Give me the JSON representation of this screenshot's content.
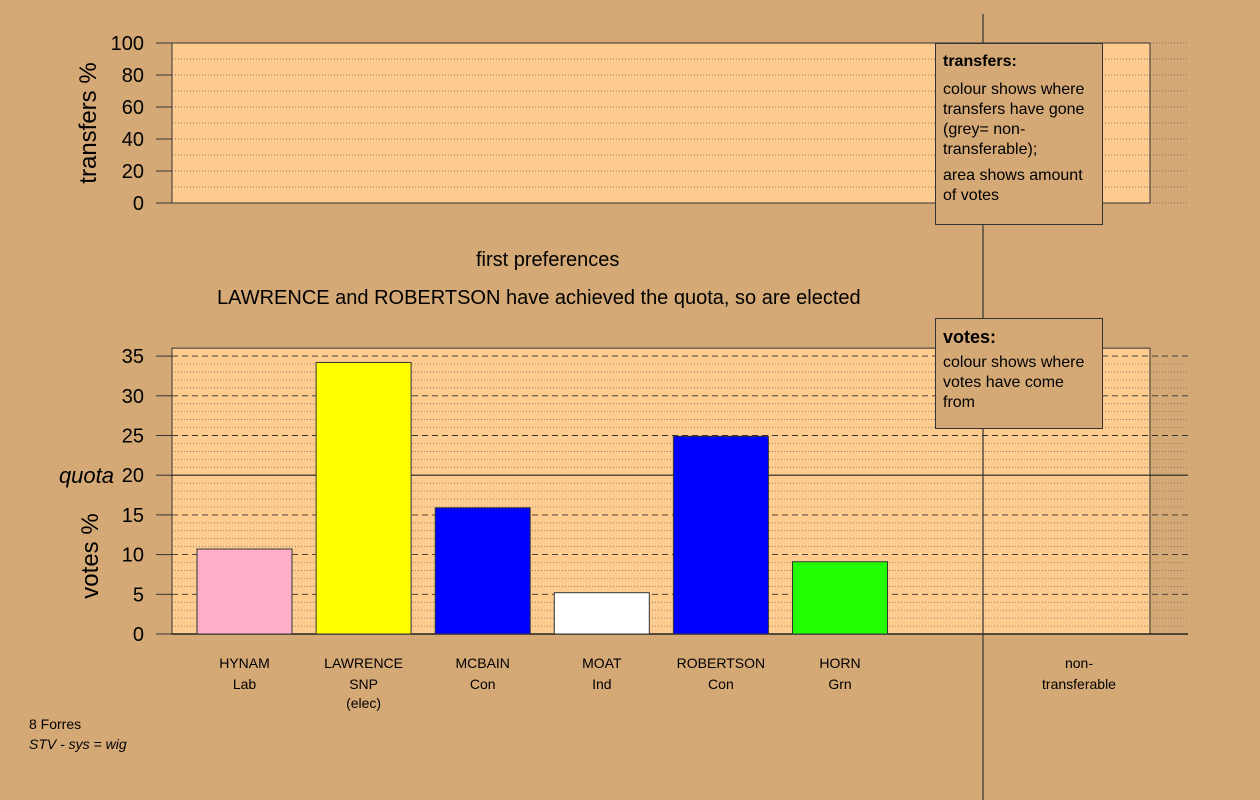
{
  "chart_data": {
    "type": "bar",
    "title": "first preferences",
    "subtitle": "LAWRENCE and ROBERTSON have achieved the quota, so are elected",
    "transfers_panel": {
      "ylabel": "transfers %",
      "ylim": [
        0,
        100
      ],
      "ticks": [
        0,
        20,
        40,
        60,
        80,
        100
      ]
    },
    "votes_panel": {
      "ylabel": "votes %",
      "ylim": [
        0,
        36
      ],
      "ticks": [
        0,
        5,
        10,
        15,
        20,
        25,
        30,
        35
      ],
      "quota": 20,
      "quota_label": "quota"
    },
    "categories": [
      {
        "name": "HYNAM",
        "party": "Lab",
        "note": "",
        "value": 10.7,
        "color": "#ffb0c8"
      },
      {
        "name": "LAWRENCE",
        "party": "SNP",
        "note": "(elec)",
        "value": 34.2,
        "color": "#ffff00"
      },
      {
        "name": "MCBAIN",
        "party": "Con",
        "note": "",
        "value": 15.9,
        "color": "#0000ff"
      },
      {
        "name": "MOAT",
        "party": "Ind",
        "note": "",
        "value": 5.2,
        "color": "#ffffff"
      },
      {
        "name": "ROBERTSON",
        "party": "Con",
        "note": "",
        "value": 24.9,
        "color": "#0000ff"
      },
      {
        "name": "HORN",
        "party": "Grn",
        "note": "",
        "value": 9.1,
        "color": "#22ff00"
      }
    ],
    "nontransferable": {
      "label_1": "non-",
      "label_2": "transferable",
      "value": 0
    }
  },
  "legend_transfers": {
    "title": "transfers:",
    "line1": "colour shows where transfers have gone (grey= non-transferable);",
    "line2": "area shows amount of votes"
  },
  "legend_votes": {
    "title": "votes:",
    "line1": "colour shows where votes have come from"
  },
  "footer": {
    "ward": "8 Forres",
    "system": "STV - sys = wig"
  },
  "colors": {
    "background": "#d4a976",
    "plot_fill": "#ffcc90"
  }
}
